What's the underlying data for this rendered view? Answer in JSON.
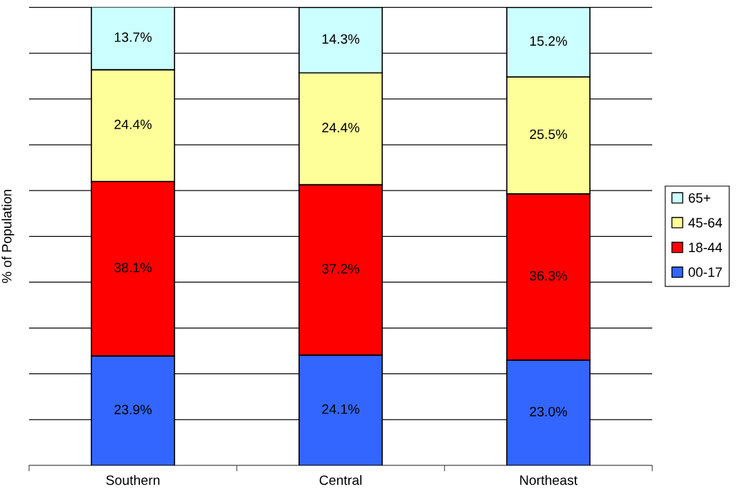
{
  "chart_data": {
    "type": "bar",
    "stacked": true,
    "ylabel": "% of Population",
    "categories": [
      "Southern",
      "Central",
      "Northeast"
    ],
    "series": [
      {
        "name": "00-17",
        "color": "#3366ff",
        "values": [
          23.9,
          24.1,
          23.0
        ],
        "value_labels": [
          "23.9%",
          "24.1%",
          "23.0%"
        ]
      },
      {
        "name": "18-44",
        "color": "#ff0000",
        "values": [
          38.1,
          37.2,
          36.3
        ],
        "value_labels": [
          "38.1%",
          "37.2%",
          "36.3%"
        ]
      },
      {
        "name": "45-64",
        "color": "#ffff99",
        "values": [
          24.4,
          24.4,
          25.5
        ],
        "value_labels": [
          "24.4%",
          "24.4%",
          "25.5%"
        ]
      },
      {
        "name": "65+",
        "color": "#ccffff",
        "values": [
          13.7,
          14.3,
          15.2
        ],
        "value_labels": [
          "13.7%",
          "14.3%",
          "15.2%"
        ]
      }
    ],
    "ylim": [
      0,
      100.1
    ],
    "yticks": [
      {
        "value": 0,
        "label": null
      },
      {
        "value": 10,
        "label": null
      },
      {
        "value": 20,
        "label": null
      },
      {
        "value": 30,
        "label": null
      },
      {
        "value": 40,
        "label": null
      },
      {
        "value": 50,
        "label": null
      },
      {
        "value": 60,
        "label": null
      },
      {
        "value": 70,
        "label": null
      },
      {
        "value": 80,
        "label": null
      },
      {
        "value": 90,
        "label": null
      },
      {
        "value": 100,
        "label": null
      }
    ],
    "tick_labels": "x",
    "grid": "y",
    "legend": "right"
  }
}
